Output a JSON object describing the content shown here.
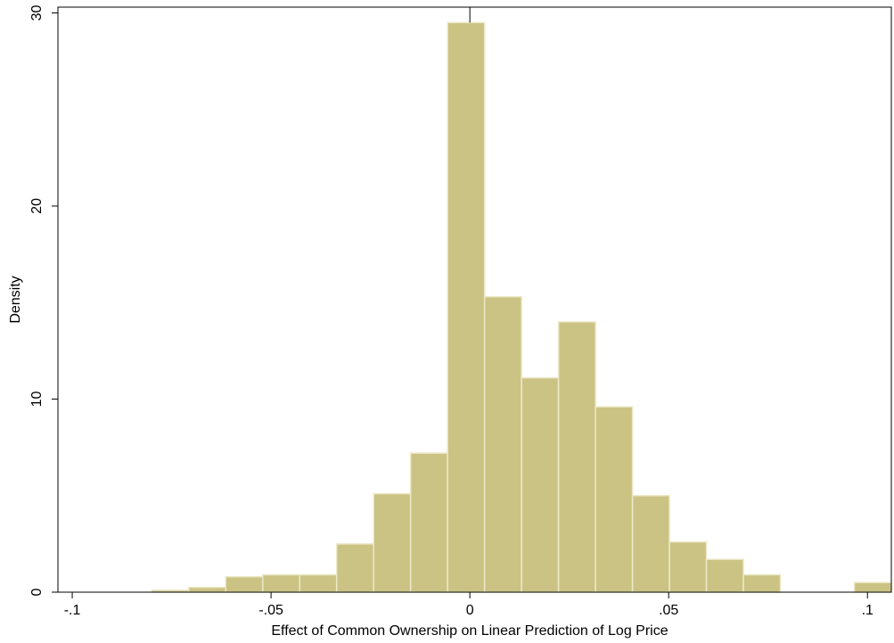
{
  "chart_data": {
    "type": "histogram",
    "xlabel": "Effect of Common Ownership on Linear Prediction of Log Price",
    "ylabel": "Density",
    "bins": [
      -0.08,
      -0.0707,
      -0.0614,
      -0.0521,
      -0.0428,
      -0.0335,
      -0.0242,
      -0.0149,
      -0.0056,
      0.0037,
      0.013,
      0.0223,
      0.0316,
      0.0409,
      0.0502,
      0.0595,
      0.0688,
      0.0781,
      0.0874,
      0.0967,
      0.106
    ],
    "values": [
      0.1,
      0.25,
      0.8,
      0.9,
      0.9,
      2.5,
      5.1,
      7.2,
      29.5,
      15.3,
      11.1,
      14.0,
      9.6,
      5.0,
      2.6,
      1.7,
      0.9,
      0,
      0,
      0.5
    ],
    "color": "#cbc383",
    "xlim": [
      -0.1036,
      0.106
    ],
    "ylim": [
      0,
      30.3
    ],
    "xticks": [
      {
        "value": -0.1,
        "label": "-.1"
      },
      {
        "value": -0.05,
        "label": "-.05"
      },
      0,
      {
        "value": 0.05,
        "label": ".05"
      },
      {
        "value": 0.1,
        "label": ".1"
      }
    ],
    "yticks": [
      0,
      10,
      20,
      30
    ],
    "xline": 0
  }
}
